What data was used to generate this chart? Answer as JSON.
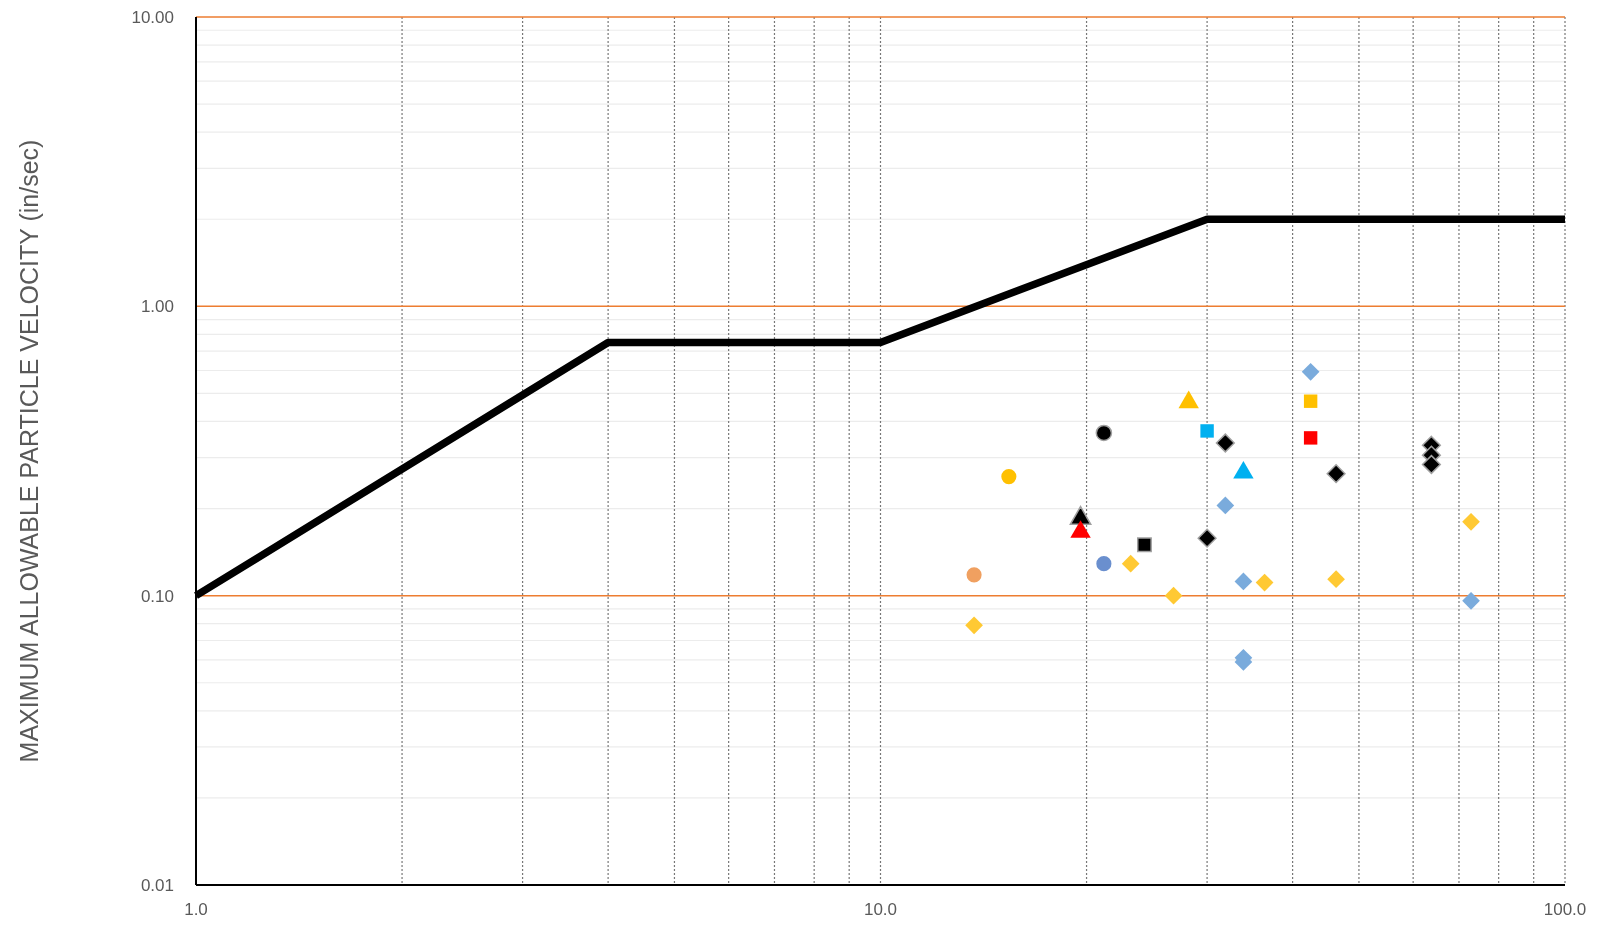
{
  "chart_data": {
    "type": "scatter",
    "ylabel": "MAXIMUM ALLOWABLE PARTICLE VELOCITY (in/sec)",
    "log": "xy",
    "grid": true,
    "xlim": [
      1,
      100
    ],
    "xticks": [
      {
        "value": 1,
        "label": "1.0"
      },
      {
        "value": 10,
        "label": "10.0"
      },
      {
        "value": 100,
        "label": "100.0"
      }
    ],
    "ylim": [
      0.01,
      10
    ],
    "yticks": [
      {
        "value": 0.01,
        "label": "0.01"
      },
      {
        "value": 0.1,
        "label": "0.10"
      },
      {
        "value": 1,
        "label": "1.00"
      },
      {
        "value": 10,
        "label": "10.00"
      }
    ],
    "series": [
      {
        "type": "line",
        "color": "#000000",
        "marker": "none",
        "x": [
          1,
          4,
          10,
          30,
          100
        ],
        "values": [
          0.1,
          0.75,
          0.75,
          2,
          2
        ]
      },
      {
        "color": "#ffc933",
        "marker": "diamond",
        "x": [
          13.7,
          23.2,
          26.8,
          36.4,
          46.3,
          72.9
        ],
        "values": [
          0.079,
          0.129,
          0.1,
          0.111,
          0.114,
          0.18
        ]
      },
      {
        "color": "#7aabdc",
        "marker": "diamond",
        "x": [
          31.9,
          33.9,
          33.9,
          33.9,
          42.5,
          72.9
        ],
        "values": [
          0.205,
          0.112,
          0.061,
          0.059,
          0.594,
          0.096
        ]
      },
      {
        "color": "#000000",
        "marker": "diamond",
        "x": [
          30,
          31.9,
          46.3,
          63.8,
          63.8,
          63.8
        ],
        "values": [
          0.158,
          0.337,
          0.264,
          0.331,
          0.306,
          0.284
        ]
      },
      {
        "color": "#f0a060",
        "marker": "circle",
        "x": [
          13.7
        ],
        "values": [
          0.118
        ]
      },
      {
        "color": "#ffc000",
        "marker": "circle",
        "x": [
          15.4
        ],
        "values": [
          0.258
        ]
      },
      {
        "color": "#000000",
        "marker": "circle",
        "x": [
          21.2
        ],
        "values": [
          0.365
        ]
      },
      {
        "color": "#6a8fce",
        "marker": "circle",
        "x": [
          21.2
        ],
        "values": [
          0.129
        ]
      },
      {
        "color": "#000000",
        "marker": "triangle",
        "x": [
          19.6
        ],
        "values": [
          0.185
        ]
      },
      {
        "color": "#ff0000",
        "marker": "triangle",
        "x": [
          19.6
        ],
        "values": [
          0.166
        ]
      },
      {
        "color": "#ffc000",
        "marker": "triangle",
        "x": [
          28.2
        ],
        "values": [
          0.466
        ]
      },
      {
        "color": "#00b0f0",
        "marker": "triangle",
        "x": [
          33.9
        ],
        "values": [
          0.266
        ]
      },
      {
        "color": "#000000",
        "marker": "square",
        "x": [
          24.3
        ],
        "values": [
          0.15
        ]
      },
      {
        "color": "#00b0f0",
        "marker": "square",
        "x": [
          30
        ],
        "values": [
          0.371
        ]
      },
      {
        "color": "#ffc000",
        "marker": "square",
        "x": [
          42.5
        ],
        "values": [
          0.47
        ]
      },
      {
        "color": "#ff0000",
        "marker": "square",
        "x": [
          42.5
        ],
        "values": [
          0.351
        ]
      }
    ]
  }
}
